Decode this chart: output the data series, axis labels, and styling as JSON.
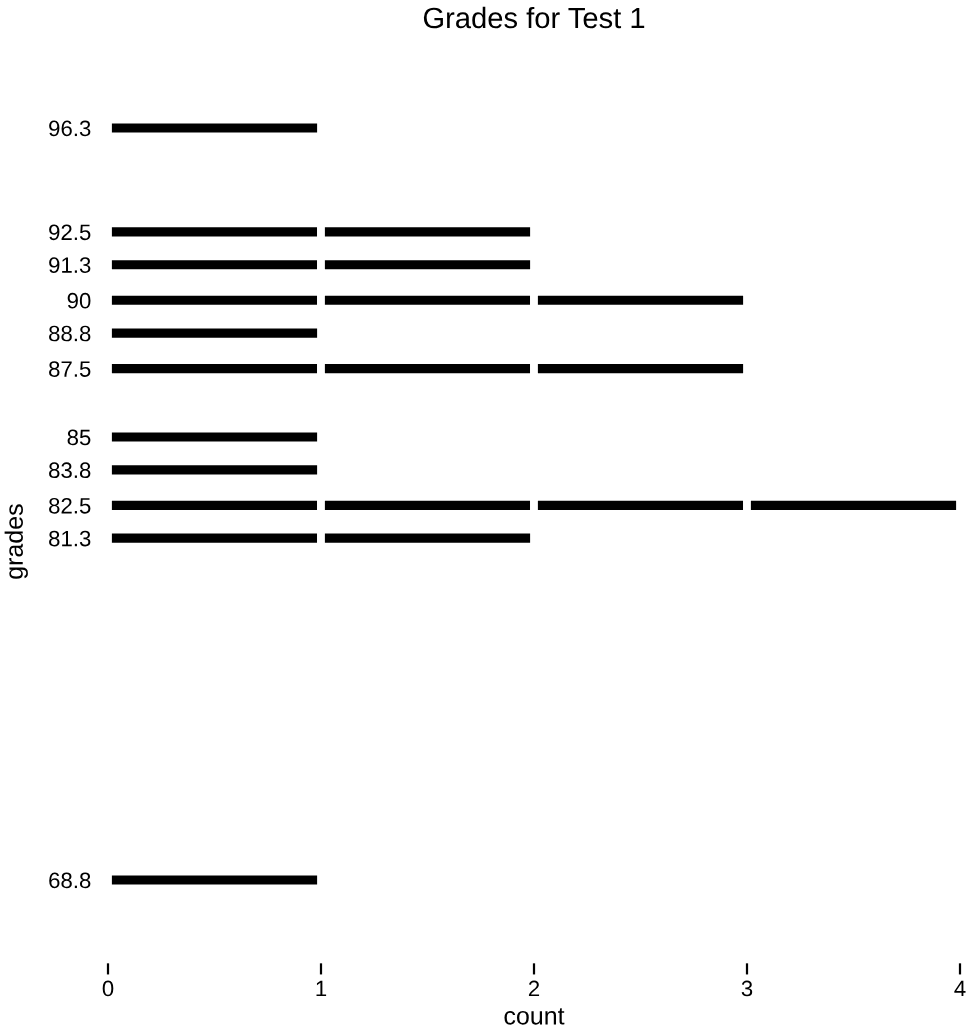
{
  "chart_data": {
    "type": "bar",
    "orientation": "horizontal",
    "stacked": true,
    "title": "Grades for Test 1",
    "xlabel": "count",
    "ylabel": "grades",
    "x": [
      96.3,
      92.5,
      91.3,
      90,
      88.8,
      87.5,
      85,
      83.8,
      82.5,
      81.3,
      68.8
    ],
    "series": [
      {
        "color": "#000000",
        "values": [
          1,
          1,
          1,
          1,
          1,
          1,
          1,
          1,
          1,
          1,
          1
        ]
      },
      {
        "color": "#000000",
        "values": [
          null,
          1,
          1,
          1,
          null,
          1,
          null,
          null,
          1,
          1,
          null
        ]
      },
      {
        "color": "#000000",
        "values": [
          null,
          null,
          null,
          1,
          null,
          1,
          null,
          null,
          1,
          null,
          null
        ]
      },
      {
        "color": "#000000",
        "values": [
          null,
          null,
          null,
          null,
          null,
          null,
          null,
          null,
          1,
          null,
          null
        ]
      }
    ],
    "xlim": [
      0,
      4
    ],
    "xticks": [
      0,
      1,
      2,
      3,
      4
    ],
    "ylim": [
      68.8,
      96.3
    ],
    "yticks": [
      96.3,
      92.5,
      91.3,
      90,
      88.8,
      87.5,
      85,
      83.8,
      82.5,
      81.3,
      68.8
    ],
    "grid": false
  }
}
